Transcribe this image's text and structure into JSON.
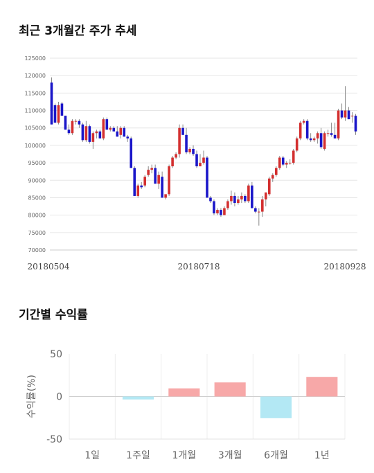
{
  "chart_data": [
    {
      "type": "candlestick",
      "title": "최근 3개월간 주가 추세",
      "ylim": [
        70000,
        125000
      ],
      "yticks": [
        70000,
        75000,
        80000,
        85000,
        90000,
        95000,
        100000,
        105000,
        110000,
        115000,
        120000,
        125000
      ],
      "xticks": [
        "20180504",
        "20180718",
        "20180928"
      ],
      "grid": true,
      "colors": {
        "up": "#d32f2f",
        "down": "#1a16c9",
        "wick": "#888888"
      },
      "candles": [
        [
          118000,
          119500,
          106000,
          106000
        ],
        [
          111500,
          112000,
          106500,
          106500
        ],
        [
          106500,
          112500,
          106000,
          111500
        ],
        [
          112000,
          112500,
          108500,
          108500
        ],
        [
          108500,
          108500,
          104500,
          104500
        ],
        [
          104500,
          106000,
          103000,
          103500
        ],
        [
          103500,
          107500,
          103000,
          107000
        ],
        [
          107000,
          107500,
          106000,
          107000
        ],
        [
          107000,
          107500,
          105000,
          106000
        ],
        [
          106000,
          106500,
          101000,
          101500
        ],
        [
          101500,
          107000,
          101000,
          105500
        ],
        [
          105500,
          106000,
          100500,
          101000
        ],
        [
          101000,
          104000,
          99000,
          103500
        ],
        [
          103500,
          104500,
          102000,
          104000
        ],
        [
          104000,
          104500,
          102000,
          102000
        ],
        [
          102000,
          108000,
          101500,
          107500
        ],
        [
          107500,
          108000,
          104500,
          104500
        ],
        [
          104500,
          105500,
          104000,
          105000
        ],
        [
          105000,
          105500,
          104500,
          104000
        ],
        [
          104000,
          105500,
          102500,
          102500
        ],
        [
          103000,
          105500,
          102000,
          105000
        ],
        [
          105000,
          105500,
          102500,
          102500
        ],
        [
          102500,
          103000,
          101000,
          102000
        ],
        [
          102000,
          102500,
          93500,
          93500
        ],
        [
          93500,
          94000,
          85500,
          85500
        ],
        [
          85500,
          89000,
          85000,
          88500
        ],
        [
          88500,
          89500,
          87500,
          88000
        ],
        [
          88500,
          91500,
          88000,
          91000
        ],
        [
          91500,
          94000,
          91000,
          93000
        ],
        [
          93000,
          94500,
          92000,
          93500
        ],
        [
          93500,
          94500,
          89000,
          89000
        ],
        [
          89000,
          92500,
          87500,
          91500
        ],
        [
          91000,
          92500,
          85000,
          85000
        ],
        [
          85000,
          86000,
          84500,
          86000
        ],
        [
          86000,
          94500,
          85500,
          94000
        ],
        [
          94000,
          97000,
          93500,
          96500
        ],
        [
          96500,
          98000,
          96000,
          97500
        ],
        [
          97500,
          106000,
          96500,
          105000
        ],
        [
          105000,
          106000,
          103000,
          103000
        ],
        [
          103000,
          105000,
          97500,
          98000
        ],
        [
          98000,
          99500,
          97500,
          99000
        ],
        [
          99000,
          100000,
          97000,
          97500
        ],
        [
          97500,
          98500,
          93500,
          94000
        ],
        [
          94000,
          97500,
          94000,
          95000
        ],
        [
          95000,
          98500,
          94500,
          96500
        ],
        [
          96500,
          97000,
          85000,
          85000
        ],
        [
          85000,
          85500,
          83500,
          84000
        ],
        [
          84000,
          84500,
          80000,
          80500
        ],
        [
          80500,
          82000,
          80000,
          81500
        ],
        [
          81500,
          82000,
          79500,
          80000
        ],
        [
          80000,
          82500,
          80000,
          82000
        ],
        [
          82000,
          84500,
          81500,
          84000
        ],
        [
          84000,
          87000,
          83000,
          85500
        ],
        [
          85500,
          86500,
          82500,
          83500
        ],
        [
          83500,
          85500,
          83000,
          84500
        ],
        [
          84500,
          86500,
          83500,
          85500
        ],
        [
          85500,
          86000,
          83500,
          84000
        ],
        [
          84000,
          89000,
          83500,
          88500
        ],
        [
          88500,
          89500,
          82000,
          82000
        ],
        [
          82000,
          82500,
          80500,
          81000
        ],
        [
          81000,
          82000,
          77000,
          81000
        ],
        [
          81000,
          85500,
          79500,
          84500
        ],
        [
          84500,
          86500,
          82500,
          86500
        ],
        [
          86000,
          91000,
          85500,
          90500
        ],
        [
          90500,
          92000,
          89500,
          91500
        ],
        [
          91500,
          94000,
          91000,
          93500
        ],
        [
          93500,
          97000,
          93000,
          96500
        ],
        [
          96500,
          97000,
          94000,
          94500
        ],
        [
          94500,
          95500,
          93500,
          95000
        ],
        [
          95000,
          96000,
          94500,
          95000
        ],
        [
          95000,
          99000,
          94500,
          98500
        ],
        [
          98500,
          102500,
          98000,
          102000
        ],
        [
          102000,
          107000,
          101500,
          106500
        ],
        [
          106500,
          107500,
          106000,
          107000
        ],
        [
          107000,
          107500,
          101500,
          102000
        ],
        [
          102000,
          103500,
          101000,
          101500
        ],
        [
          101500,
          102500,
          101000,
          102000
        ],
        [
          102000,
          104000,
          100500,
          103500
        ],
        [
          103500,
          105000,
          99000,
          99500
        ],
        [
          99000,
          104000,
          98500,
          103500
        ],
        [
          103500,
          104500,
          102500,
          103500
        ],
        [
          103500,
          106500,
          102500,
          103000
        ],
        [
          103000,
          106500,
          102000,
          102000
        ],
        [
          102000,
          110500,
          101500,
          110000
        ],
        [
          110000,
          112000,
          107500,
          108000
        ],
        [
          108000,
          117000,
          107000,
          110000
        ],
        [
          110000,
          111000,
          107500,
          107500
        ],
        [
          108500,
          109500,
          106500,
          108500
        ],
        [
          108500,
          109000,
          103000,
          104000
        ]
      ]
    },
    {
      "type": "bar",
      "title": "기간별 수익률",
      "ylabel": "수익률(%)",
      "categories": [
        "1일",
        "1주일",
        "1개월",
        "3개월",
        "6개월",
        "1년"
      ],
      "values": [
        0,
        -3.5,
        9.5,
        16.5,
        -25.5,
        23
      ],
      "yticks": [
        50,
        0,
        -50
      ],
      "ytick_labels": [
        "50",
        "0",
        "-50"
      ],
      "ylim": [
        -50,
        50
      ],
      "colors": {
        "positive": "#f7a8a8",
        "negative": "#b3e8f4"
      }
    }
  ]
}
